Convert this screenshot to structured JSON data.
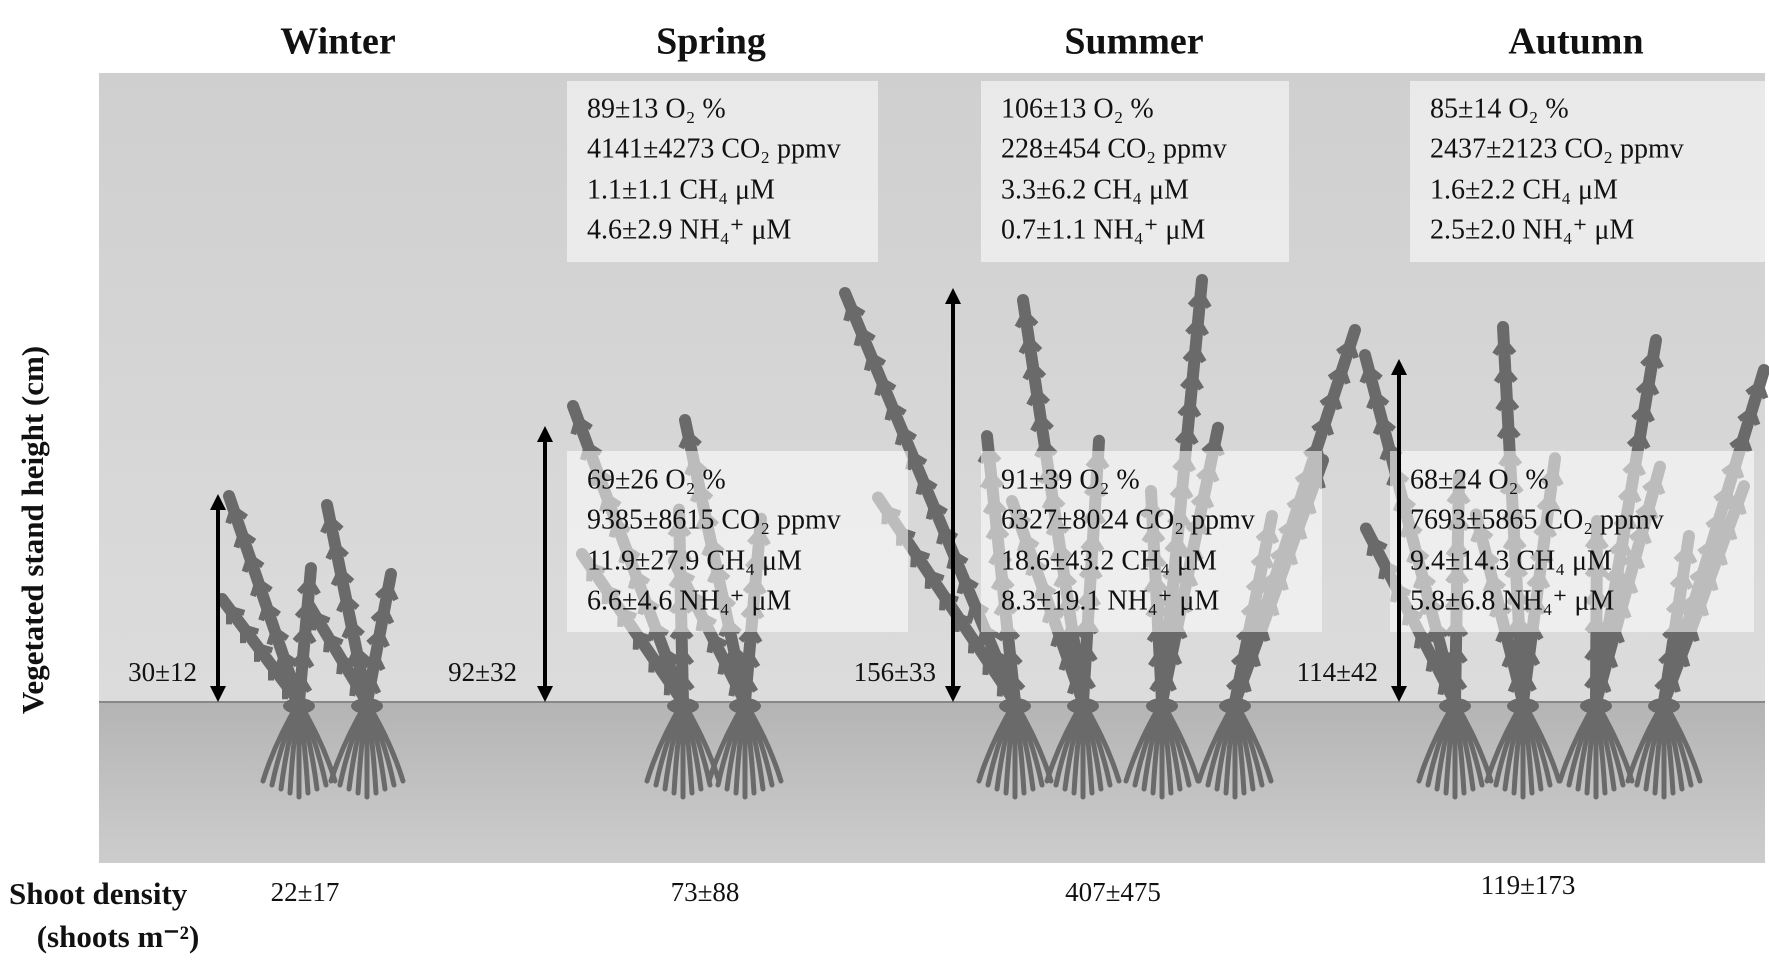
{
  "y_axis_label": "Vegetated stand height (cm)",
  "shoot_density_label": "Shoot density",
  "shoot_density_unit": "(shoots m⁻²)",
  "seasons": [
    {
      "name": "Winter",
      "stand_height": "30±12",
      "shoot_density": "22±17"
    },
    {
      "name": "Spring",
      "stand_height": "92±32",
      "shoot_density": "73±88",
      "upper_box": [
        "89±13 O₂ %",
        "4141±4273 CO₂ ppmv",
        "1.1±1.1 CH₄ μM",
        "4.6±2.9 NH₄⁺ μM"
      ],
      "lower_box": [
        "69±26 O₂ %",
        "9385±8615 CO₂ ppmv",
        "11.9±27.9 CH₄ μM",
        "6.6±4.6 NH₄⁺ μM"
      ]
    },
    {
      "name": "Summer",
      "stand_height": "156±33",
      "shoot_density": "407±475",
      "upper_box": [
        "106±13 O₂ %",
        "228±454 CO₂ ppmv",
        "3.3±6.2 CH₄ μM",
        "0.7±1.1 NH₄⁺ μM"
      ],
      "lower_box": [
        "91±39 O₂ %",
        "6327±8024 CO₂ ppmv",
        "18.6±43.2 CH₄ μM",
        "8.3±19.1 NH₄⁺ μM"
      ]
    },
    {
      "name": "Autumn",
      "stand_height": "114±42",
      "shoot_density": "119±173",
      "upper_box": [
        "85±14 O₂ %",
        "2437±2123 CO₂ ppmv",
        "1.6±2.2 CH₄ μM",
        "2.5±2.0 NH₄⁺ μM"
      ],
      "lower_box": [
        "68±24 O₂ %",
        "7693±5865 CO₂ ppmv",
        "9.4±14.3 CH₄ μM",
        "5.8±6.8 NH₄⁺ μM"
      ]
    }
  ]
}
